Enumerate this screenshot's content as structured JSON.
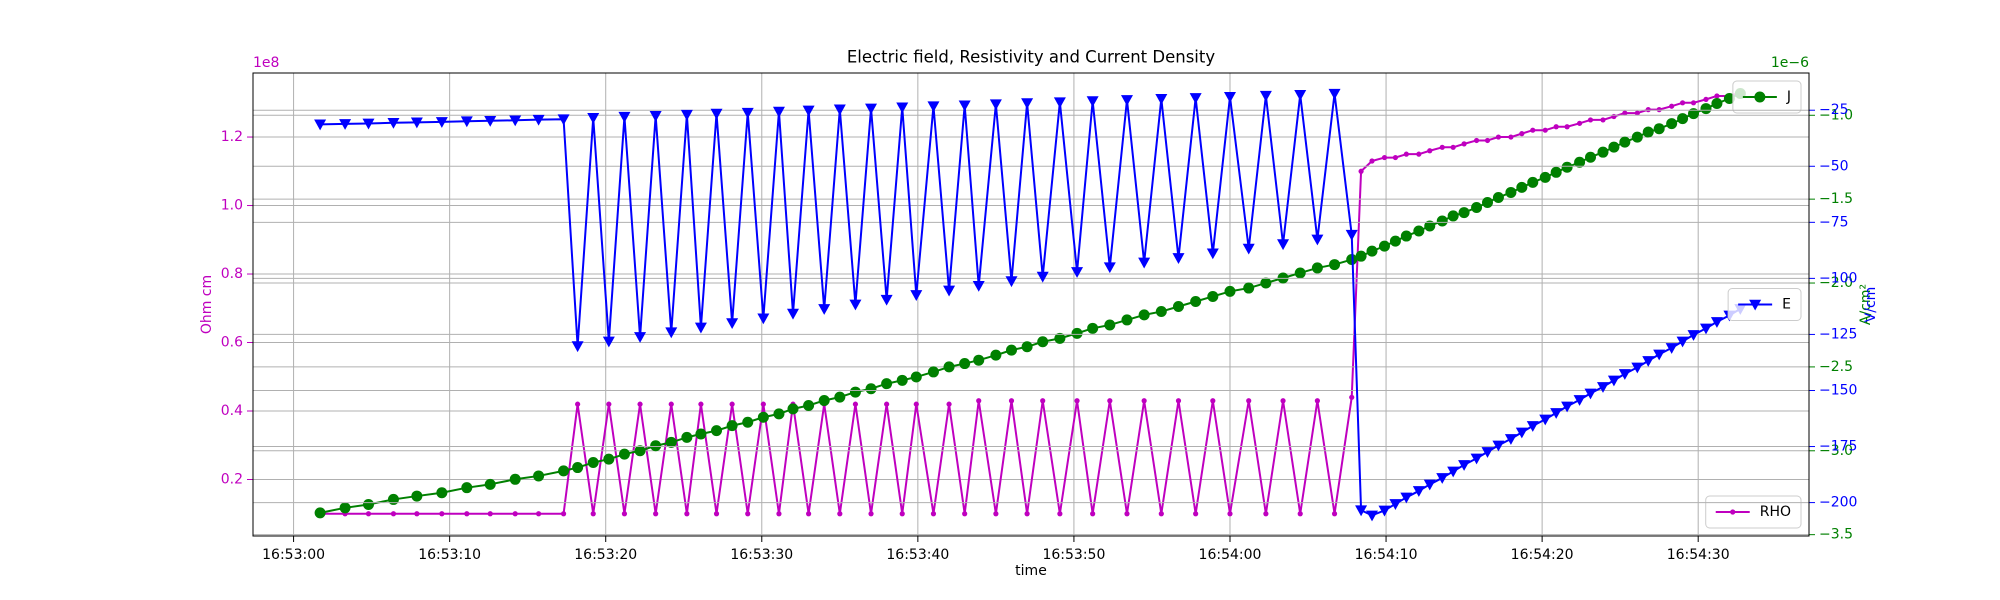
{
  "chart_data": {
    "type": "line",
    "title": "Electric field, Resistivity and Current Density",
    "xlabel": "time",
    "x": [
      "16:53:01.7",
      "16:53:03.3",
      "16:53:04.8",
      "16:53:06.4",
      "16:53:07.9",
      "16:53:09.5",
      "16:53:11.1",
      "16:53:12.6",
      "16:53:14.2",
      "16:53:15.7",
      "16:53:17.3",
      "16:53:18.2",
      "16:53:19.2",
      "16:53:20.2",
      "16:53:21.2",
      "16:53:22.2",
      "16:53:23.2",
      "16:53:24.2",
      "16:53:25.2",
      "16:53:26.1",
      "16:53:27.1",
      "16:53:28.1",
      "16:53:29.1",
      "16:53:30.1",
      "16:53:31.1",
      "16:53:32.0",
      "16:53:33.0",
      "16:53:34.0",
      "16:53:35.0",
      "16:53:36.0",
      "16:53:37.0",
      "16:53:38.0",
      "16:53:39.0",
      "16:53:39.9",
      "16:53:41.0",
      "16:53:42.0",
      "16:53:43.0",
      "16:53:43.9",
      "16:53:45.0",
      "16:53:46.0",
      "16:53:47.0",
      "16:53:48.0",
      "16:53:49.1",
      "16:53:50.2",
      "16:53:51.2",
      "16:53:52.3",
      "16:53:53.4",
      "16:53:54.5",
      "16:53:55.6",
      "16:53:56.7",
      "16:53:57.8",
      "16:53:58.9",
      "16:54:00.0",
      "16:54:01.2",
      "16:54:02.3",
      "16:54:03.4",
      "16:54:04.5",
      "16:54:05.6",
      "16:54:06.7",
      "16:54:07.8",
      "16:54:08.4",
      "16:54:09.1",
      "16:54:09.9",
      "16:54:10.6",
      "16:54:11.3",
      "16:54:12.1",
      "16:54:12.8",
      "16:54:13.6",
      "16:54:14.3",
      "16:54:15.0",
      "16:54:15.8",
      "16:54:16.5",
      "16:54:17.2",
      "16:54:18.0",
      "16:54:18.7",
      "16:54:19.4",
      "16:54:20.2",
      "16:54:20.9",
      "16:54:21.6",
      "16:54:22.4",
      "16:54:23.1",
      "16:54:23.9",
      "16:54:24.6",
      "16:54:25.3",
      "16:54:26.1",
      "16:54:26.8",
      "16:54:27.5",
      "16:54:28.3",
      "16:54:29.0",
      "16:54:29.7",
      "16:54:30.5",
      "16:54:31.2",
      "16:54:32.0",
      "16:54:32.7"
    ],
    "xlim": [
      "16:52:57.4",
      "16:54:37.1"
    ],
    "xticks": [
      "16:53:00",
      "16:53:10",
      "16:53:20",
      "16:53:30",
      "16:53:40",
      "16:53:50",
      "16:54:00",
      "16:54:10",
      "16:54:20",
      "16:54:30"
    ],
    "grid": true,
    "y_axes": [
      {
        "side": "left",
        "ylabel": "Ohm cm",
        "offset_text": "1e8",
        "color": "#bf00bf",
        "ylim": [
          0.035,
          1.387
        ],
        "yticks": [
          0.2,
          0.4,
          0.6,
          0.8,
          {
            "value": 1,
            "label": "1.0"
          },
          1.2
        ],
        "legend_loc": "lower right",
        "series": [
          {
            "name": "RHO",
            "color": "#bf00bf",
            "marker": ".",
            "values": [
              0.1,
              0.1,
              0.1,
              0.1,
              0.1,
              0.1,
              0.1,
              0.1,
              0.1,
              0.1,
              0.1,
              0.42,
              0.1,
              0.42,
              0.1,
              0.42,
              0.1,
              0.42,
              0.1,
              0.42,
              0.1,
              0.42,
              0.1,
              0.42,
              0.1,
              0.42,
              0.1,
              0.42,
              0.1,
              0.42,
              0.1,
              0.42,
              0.1,
              0.42,
              0.1,
              0.42,
              0.1,
              0.43,
              0.1,
              0.43,
              0.1,
              0.43,
              0.1,
              0.43,
              0.1,
              0.43,
              0.1,
              0.43,
              0.1,
              0.43,
              0.1,
              0.43,
              0.1,
              0.43,
              0.1,
              0.43,
              0.1,
              0.43,
              0.1,
              0.44,
              1.1,
              1.13,
              1.14,
              1.14,
              1.15,
              1.15,
              1.16,
              1.17,
              1.17,
              1.18,
              1.19,
              1.19,
              1.2,
              1.2,
              1.21,
              1.22,
              1.22,
              1.23,
              1.23,
              1.24,
              1.25,
              1.25,
              1.26,
              1.27,
              1.27,
              1.28,
              1.28,
              1.29,
              1.3,
              1.3,
              1.31,
              1.32,
              1.32,
              1.33
            ]
          }
        ]
      },
      {
        "side": "right",
        "ylabel": "A/cm²",
        "offset_text": "1e−6",
        "color": "#008000",
        "ylim": [
          -3.508,
          -0.748
        ],
        "yticks": [
          {
            "value": -3.5,
            "label": "−3.5"
          },
          {
            "value": -3,
            "label": "−3.0"
          },
          {
            "value": -2.5,
            "label": "−2.5"
          },
          {
            "value": -2,
            "label": "−2.0"
          },
          {
            "value": -1.5,
            "label": "−1.5"
          },
          {
            "value": -1,
            "label": "−1.0"
          }
        ],
        "legend_loc": "upper right",
        "series": [
          {
            "name": "J",
            "color": "#008000",
            "marker": "o",
            "values": [
              -3.37,
              -3.34,
              -3.32,
              -3.29,
              -3.27,
              -3.25,
              -3.22,
              -3.2,
              -3.17,
              -3.15,
              -3.12,
              -3.1,
              -3.07,
              -3.05,
              -3.02,
              -3,
              -2.97,
              -2.95,
              -2.92,
              -2.9,
              -2.88,
              -2.85,
              -2.83,
              -2.8,
              -2.78,
              -2.75,
              -2.73,
              -2.7,
              -2.68,
              -2.65,
              -2.63,
              -2.6,
              -2.58,
              -2.56,
              -2.53,
              -2.5,
              -2.48,
              -2.46,
              -2.43,
              -2.4,
              -2.38,
              -2.35,
              -2.33,
              -2.3,
              -2.27,
              -2.25,
              -2.22,
              -2.19,
              -2.17,
              -2.14,
              -2.11,
              -2.08,
              -2.05,
              -2.03,
              -2,
              -1.97,
              -1.94,
              -1.91,
              -1.89,
              -1.86,
              -1.84,
              -1.81,
              -1.78,
              -1.75,
              -1.72,
              -1.69,
              -1.66,
              -1.63,
              -1.6,
              -1.58,
              -1.55,
              -1.52,
              -1.49,
              -1.46,
              -1.43,
              -1.4,
              -1.37,
              -1.34,
              -1.31,
              -1.28,
              -1.25,
              -1.22,
              -1.19,
              -1.16,
              -1.13,
              -1.1,
              -1.08,
              -1.05,
              -1.02,
              -0.99,
              -0.96,
              -0.93,
              -0.9,
              -0.87
            ]
          }
        ]
      },
      {
        "side": "right",
        "ylabel": "V/cm",
        "color": "#0000ff",
        "ylim": [
          -214.9,
          -8.4
        ],
        "yticks": [
          {
            "value": -200,
            "label": "−200"
          },
          {
            "value": -175,
            "label": "−175"
          },
          {
            "value": -150,
            "label": "−150"
          },
          {
            "value": -125,
            "label": "−125"
          },
          {
            "value": -100,
            "label": "−100"
          },
          {
            "value": -75,
            "label": "−75"
          },
          {
            "value": -50,
            "label": "−50"
          },
          {
            "value": -25,
            "label": "−25"
          }
        ],
        "legend_loc": "center right",
        "series": [
          {
            "name": "E",
            "color": "#0000ff",
            "marker": "v",
            "values": [
              -31.3,
              -31.1,
              -30.9,
              -30.6,
              -30.4,
              -30.2,
              -29.9,
              -29.7,
              -29.5,
              -29.2,
              -29,
              -130.2,
              -28.4,
              -128.1,
              -27.9,
              -126.1,
              -27.5,
              -124,
              -27,
              -121.9,
              -26.5,
              -119.9,
              -26.1,
              -117.8,
              -25.6,
              -115.7,
              -25.1,
              -113.6,
              -24.6,
              -111.6,
              -24.2,
              -109.5,
              -23.7,
              -107.4,
              -23.2,
              -105.4,
              -22.8,
              -103.3,
              -22.3,
              -101.2,
              -21.8,
              -99.2,
              -21.4,
              -97.1,
              -20.9,
              -95,
              -20.4,
              -92.9,
              -19.9,
              -90.9,
              -19.5,
              -88.8,
              -19,
              -86.7,
              -18.5,
              -84.7,
              -18.1,
              -82.6,
              -17.6,
              -80.5,
              -203.4,
              -205.7,
              -203.5,
              -200.6,
              -197.7,
              -194.8,
              -191.9,
              -189,
              -186.1,
              -183.2,
              -180.3,
              -177.4,
              -174.5,
              -171.6,
              -168.7,
              -165.8,
              -162.9,
              -160,
              -157.1,
              -154.2,
              -151.3,
              -148.4,
              -145.5,
              -142.6,
              -139.7,
              -136.8,
              -133.9,
              -131,
              -128.1,
              -125.2,
              -122.3,
              -119.4,
              -116.5,
              -113.6
            ]
          }
        ]
      }
    ]
  }
}
